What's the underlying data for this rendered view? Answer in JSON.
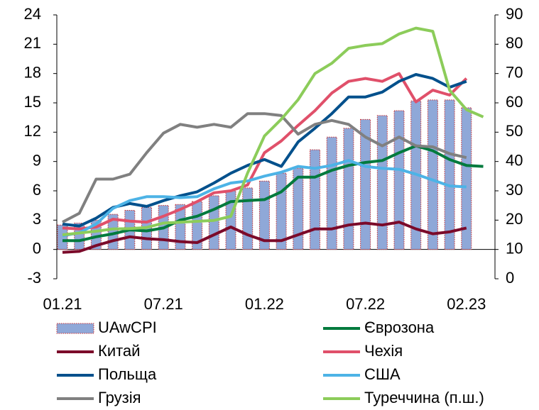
{
  "chart_data": {
    "type": "combo",
    "categories": [
      "01.21",
      null,
      null,
      null,
      null,
      null,
      "07.21",
      null,
      null,
      null,
      null,
      null,
      "01.22",
      null,
      null,
      null,
      null,
      null,
      "07.22",
      null,
      null,
      null,
      null,
      null,
      "02.23",
      null
    ],
    "ylim": [
      -3,
      24
    ],
    "yticks": [
      -3,
      0,
      3,
      6,
      9,
      12,
      15,
      18,
      21,
      24
    ],
    "y2lim": [
      0,
      90
    ],
    "y2ticks": [
      0,
      10,
      20,
      30,
      40,
      50,
      60,
      70,
      80,
      90
    ],
    "grid": false,
    "series": [
      {
        "name": "UAwCPI",
        "type": "bar",
        "color": "#8fa8d8",
        "values": [
          2.5,
          2.7,
          3.0,
          3.6,
          4.0,
          4.3,
          4.5,
          4.6,
          4.9,
          5.5,
          6.0,
          6.3,
          7.0,
          7.8,
          8.3,
          10.2,
          11.5,
          12.4,
          13.3,
          13.7,
          14.2,
          15.2,
          15.3,
          15.3,
          14.5,
          null
        ]
      },
      {
        "name": "Єврозона",
        "type": "line",
        "color": "#007a3d",
        "values": [
          0.9,
          0.9,
          1.3,
          1.6,
          2.0,
          1.9,
          2.2,
          3.0,
          3.4,
          4.1,
          4.9,
          5.0,
          5.1,
          5.9,
          7.4,
          7.4,
          8.1,
          8.6,
          8.9,
          9.1,
          9.9,
          10.6,
          10.1,
          9.2,
          8.6,
          8.5
        ]
      },
      {
        "name": "Китай",
        "type": "line",
        "color": "#7b0a2a",
        "values": [
          -0.3,
          -0.2,
          0.4,
          0.9,
          1.3,
          1.1,
          1.0,
          0.8,
          0.7,
          1.5,
          2.3,
          1.5,
          0.9,
          0.9,
          1.5,
          2.1,
          2.1,
          2.5,
          2.7,
          2.5,
          2.8,
          2.1,
          1.6,
          1.8,
          2.2,
          null
        ]
      },
      {
        "name": "Чехія",
        "type": "line",
        "color": "#e0506a",
        "values": [
          2.2,
          2.1,
          2.3,
          3.1,
          2.9,
          2.8,
          3.4,
          4.1,
          4.9,
          5.8,
          6.0,
          6.6,
          9.9,
          11.1,
          12.7,
          14.2,
          16.0,
          17.2,
          17.5,
          17.2,
          18.0,
          15.1,
          16.3,
          15.8,
          17.5,
          null
        ]
      },
      {
        "name": "Польща",
        "type": "line",
        "color": "#00508c",
        "values": [
          2.6,
          2.4,
          3.2,
          4.3,
          4.7,
          4.4,
          5.0,
          5.5,
          5.9,
          6.8,
          7.8,
          8.6,
          9.2,
          8.5,
          11.0,
          12.4,
          13.9,
          15.6,
          15.6,
          16.1,
          17.2,
          17.9,
          17.5,
          16.6,
          17.2,
          null
        ]
      },
      {
        "name": "США",
        "type": "line",
        "color": "#4db3e6",
        "values": [
          1.4,
          1.7,
          2.6,
          4.2,
          5.0,
          5.4,
          5.4,
          5.3,
          5.4,
          6.2,
          6.8,
          7.0,
          7.5,
          7.9,
          8.5,
          8.3,
          8.6,
          9.1,
          8.5,
          8.3,
          8.2,
          7.7,
          7.1,
          6.5,
          6.4,
          null
        ]
      },
      {
        "name": "Грузія",
        "type": "line",
        "color": "#808080",
        "values": [
          2.8,
          3.7,
          7.2,
          7.2,
          7.7,
          9.9,
          11.9,
          12.8,
          12.5,
          12.8,
          12.5,
          13.9,
          13.9,
          13.7,
          11.8,
          12.8,
          13.2,
          12.8,
          11.5,
          10.6,
          11.5,
          10.6,
          10.5,
          9.8,
          9.4,
          null
        ]
      },
      {
        "name": "Туреччина (п.ш.)",
        "type": "line",
        "axis": "y2",
        "color": "#8ccc5a",
        "values": [
          15.0,
          15.6,
          16.2,
          17.0,
          17.1,
          17.5,
          19.0,
          19.3,
          19.6,
          19.9,
          21.3,
          36.1,
          48.7,
          54.4,
          61.1,
          70.0,
          73.5,
          78.6,
          79.6,
          80.2,
          83.5,
          85.5,
          84.4,
          64.3,
          57.7,
          55.2
        ]
      }
    ]
  }
}
